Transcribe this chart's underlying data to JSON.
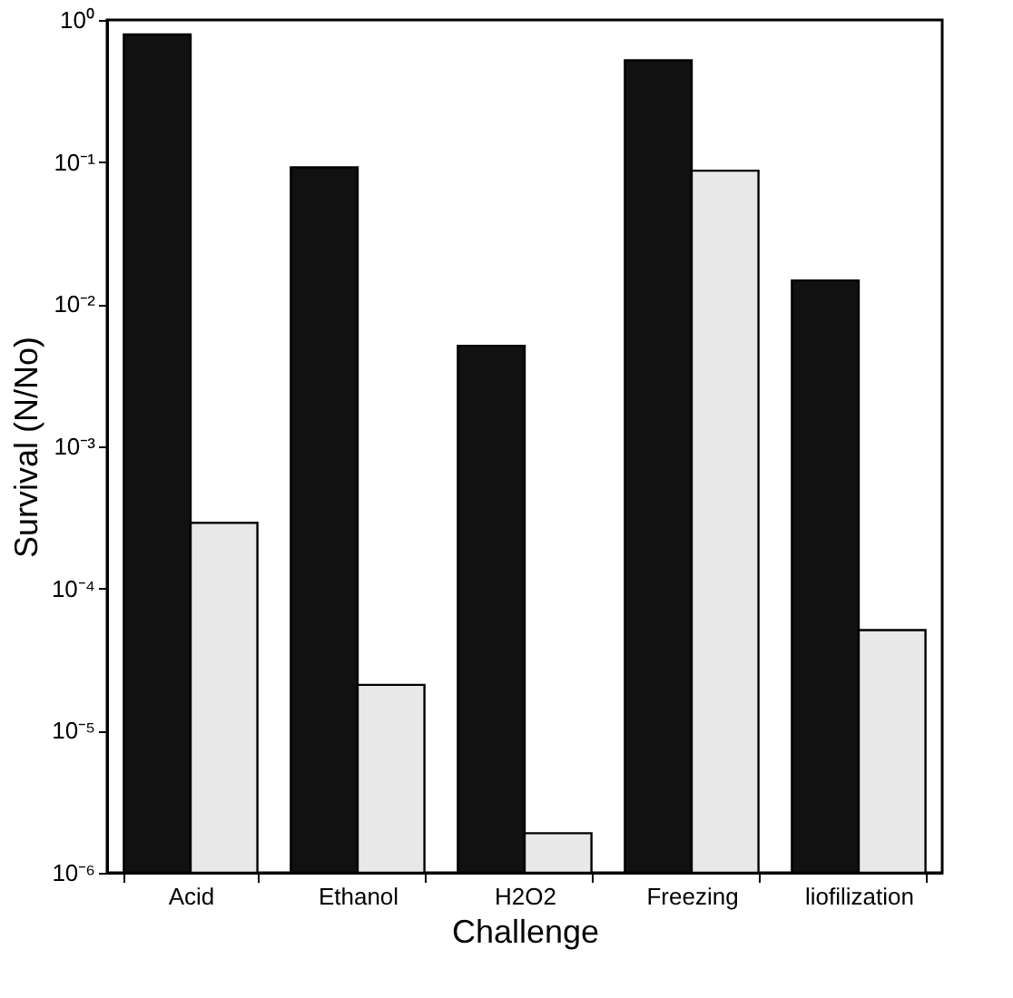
{
  "chart_data": {
    "type": "bar",
    "xlabel": "Challenge",
    "ylabel": "Survival (N/No)",
    "categories": [
      "Acid",
      "Ethanol",
      "H2O2",
      "Freezing",
      "liofilization"
    ],
    "series": [
      {
        "color": "#111111",
        "values": [
          0.79,
          0.092,
          0.0051,
          0.52,
          0.0147
        ]
      },
      {
        "color": "#e8e8e8",
        "values": [
          0.00029,
          2.1e-05,
          1.9e-06,
          0.087,
          5.1e-05
        ]
      }
    ],
    "log": "y",
    "ylim": [
      1e-06,
      1
    ],
    "yticks": [
      {
        "value": 1,
        "label": "10⁰"
      },
      {
        "value": 0.1,
        "label": "10⁻¹"
      },
      {
        "value": 0.01,
        "label": "10⁻²"
      },
      {
        "value": 0.001,
        "label": "10⁻³"
      },
      {
        "value": 0.0001,
        "label": "10⁻⁴"
      },
      {
        "value": 1e-05,
        "label": "10⁻⁵"
      },
      {
        "value": 1e-06,
        "label": "10⁻⁶"
      }
    ],
    "grid": false,
    "legend": false
  }
}
